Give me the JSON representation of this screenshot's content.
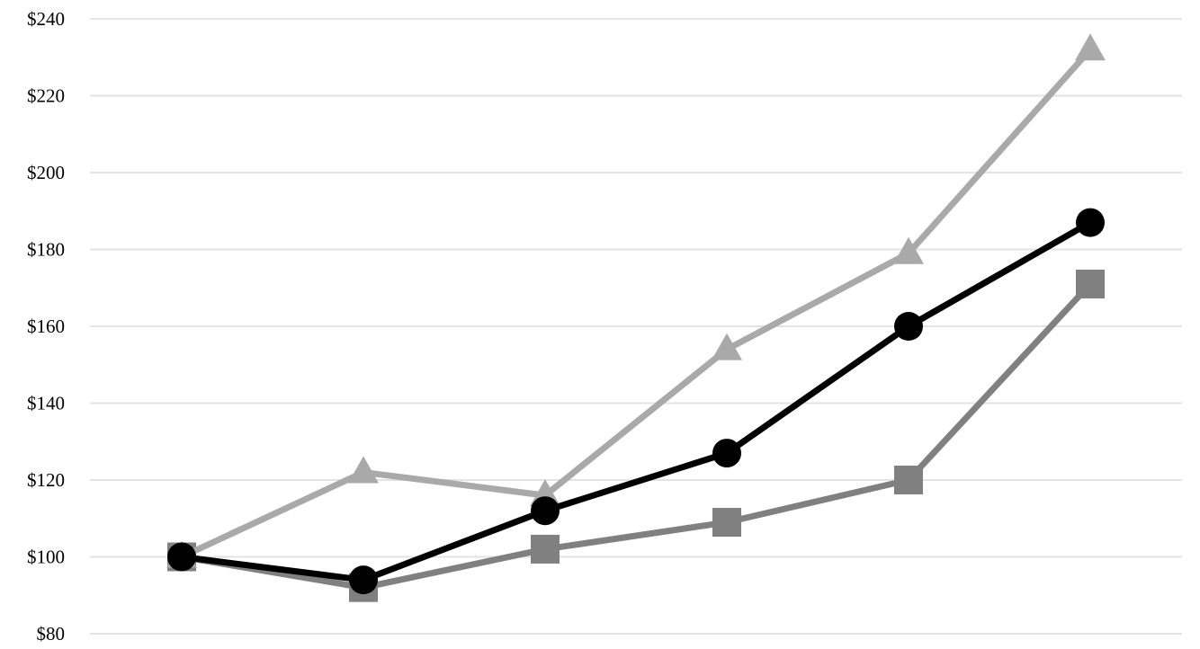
{
  "chart_data": {
    "type": "line",
    "title": "",
    "xlabel": "",
    "ylabel": "",
    "ylim": [
      80,
      240
    ],
    "y_ticks": [
      80,
      100,
      120,
      140,
      160,
      180,
      200,
      220,
      240
    ],
    "y_tick_prefix": "$",
    "x": [
      1,
      2,
      3,
      4,
      5,
      6
    ],
    "grid": "horizontal",
    "legend": "none",
    "series": [
      {
        "color": "#000000",
        "marker": "circle",
        "values": [
          100,
          94,
          112,
          127,
          160,
          187
        ]
      },
      {
        "color": "#808080",
        "marker": "square",
        "values": [
          100,
          92,
          102,
          109,
          120,
          171
        ]
      },
      {
        "color": "#a9a9a9",
        "marker": "triangle",
        "values": [
          100,
          122,
          116,
          154,
          179,
          232
        ]
      }
    ]
  }
}
